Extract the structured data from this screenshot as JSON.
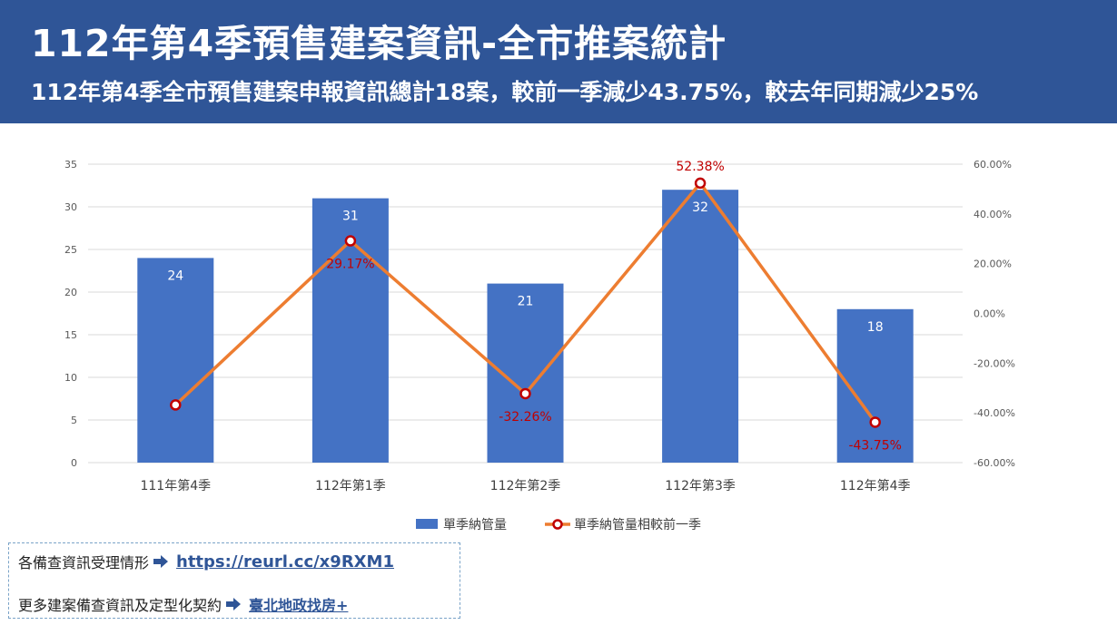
{
  "header": {
    "title": "112年第4季預售建案資訊-全市推案統計",
    "subtitle": "112年第4季全市預售建案申報資訊總計18案，較前一季減少43.75%，較去年同期減少25%"
  },
  "chart_data": {
    "type": "bar",
    "categories": [
      "111年第4季",
      "112年第1季",
      "112年第2季",
      "112年第3季",
      "112年第4季"
    ],
    "series": [
      {
        "name": "單季納管量",
        "type": "bar",
        "axis": "left",
        "values": [
          24,
          31,
          21,
          32,
          18
        ],
        "labels": [
          "24",
          "31",
          "21",
          "32",
          "18"
        ]
      },
      {
        "name": "單季納管量相較前一季",
        "type": "line",
        "axis": "right",
        "values": [
          -36.8,
          29.17,
          -32.26,
          52.38,
          -43.75
        ],
        "labels": [
          "",
          "29.17%",
          "-32.26%",
          "52.38%",
          "-43.75%"
        ]
      }
    ],
    "y_left": {
      "ylim": [
        0,
        35
      ],
      "ticks": [
        "0",
        "5",
        "10",
        "15",
        "20",
        "25",
        "30",
        "35"
      ]
    },
    "y_right": {
      "ylim": [
        -60,
        60
      ],
      "ticks": [
        "-60.00%",
        "-40.00%",
        "-20.00%",
        "0.00%",
        "20.00%",
        "40.00%",
        "60.00%"
      ]
    },
    "grid": true,
    "legend": "bottom",
    "colors": {
      "bar": "#4472c4",
      "line": "#ed7d31",
      "marker": "#c00000",
      "line_label": "#c00000"
    }
  },
  "info": {
    "row1_label": "各備查資訊受理情形",
    "row1_link": "https://reurl.cc/x9RXM1",
    "row2_label": "更多建案備查資訊及定型化契約",
    "row2_link": "臺北地政找房+",
    "arrow_icon": "arrow-right-icon",
    "arrow_color": "#2f5597"
  }
}
